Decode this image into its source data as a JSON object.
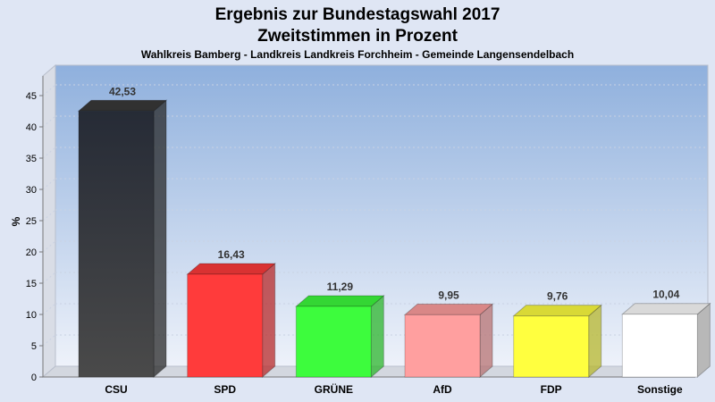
{
  "chart_data": {
    "type": "bar",
    "title": "Ergebnis zur Bundestagswahl 2017",
    "subtitle": "Zweitstimmen in Prozent",
    "caption": "Wahlkreis Bamberg - Landkreis Landkreis Forchheim - Gemeinde Langensendelbach",
    "ylabel": "%",
    "xlabel": "",
    "ylim": [
      0,
      48
    ],
    "yticks": [
      0,
      5,
      10,
      15,
      20,
      25,
      30,
      35,
      40,
      45
    ],
    "grid": true,
    "categories": [
      "CSU",
      "SPD",
      "GRÜNE",
      "AfD",
      "FDP",
      "Sonstige"
    ],
    "values": [
      42.53,
      16.43,
      11.29,
      9.95,
      9.76,
      10.04
    ],
    "value_labels": [
      "42,53",
      "16,43",
      "11,29",
      "9,95",
      "9,76",
      "10,04"
    ],
    "colors": [
      "#3a3a3a",
      "#ff3b3b",
      "#3dfc3d",
      "#ff9f9f",
      "#ffff3f",
      "#ffffff"
    ]
  }
}
